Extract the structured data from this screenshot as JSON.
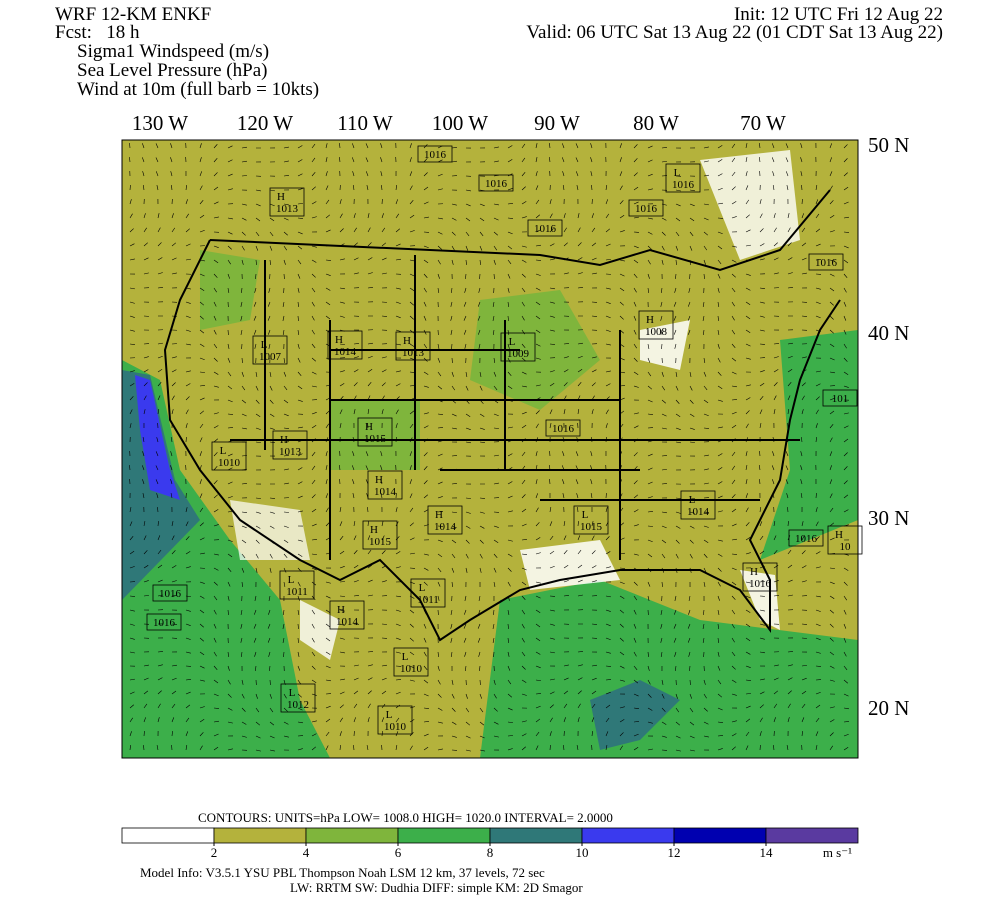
{
  "header": {
    "left": [
      "WRF 12-KM ENKF",
      "Fcst:   18 h",
      "Sigma1 Windspeed (m/s)",
      "Sea Level Pressure (hPa)",
      "Wind at 10m (full barb = 10kts)"
    ],
    "init": "Init: 12 UTC Fri 12 Aug 22",
    "valid": "Valid: 06 UTC Sat 13 Aug 22 (01 CDT Sat 13 Aug 22)"
  },
  "map": {
    "lon_labels": [
      "130 W",
      "120 W",
      "110 W",
      "100 W",
      "90 W",
      "80 W",
      "70 W"
    ],
    "lat_labels": [
      "50 N",
      "40 N",
      "30 N",
      "20 N"
    ],
    "pressure_centers": [
      {
        "value": 1016
      },
      {
        "value": 1016
      },
      {
        "kind": "L",
        "value": 1016
      },
      {
        "value": 1016
      },
      {
        "value": 1016
      },
      {
        "kind": "H",
        "value": 1013
      },
      {
        "value": 1016
      },
      {
        "kind": "H",
        "value": 1008
      },
      {
        "kind": "L",
        "value": 1007
      },
      {
        "kind": "H",
        "value": 1014
      },
      {
        "kind": "H",
        "value": 1013
      },
      {
        "kind": "L",
        "value": 1009
      },
      {
        "kind": "H",
        "value": 1015
      },
      {
        "kind": "L",
        "value": 1010
      },
      {
        "kind": "H",
        "value": 1013
      },
      {
        "value": 1016
      },
      {
        "kind": "H",
        "value": 1014
      },
      {
        "kind": "H",
        "value": 1014
      },
      {
        "kind": "H",
        "value": 1015
      },
      {
        "kind": "L",
        "value": 1015
      },
      {
        "kind": "L",
        "value": 1014
      },
      {
        "value": 1016
      },
      {
        "kind": "H",
        "value": 10
      },
      {
        "value": 101
      },
      {
        "value": 1016
      },
      {
        "value": 1016
      },
      {
        "kind": "L",
        "value": 1011
      },
      {
        "kind": "L",
        "value": 1011
      },
      {
        "kind": "H",
        "value": 1014
      },
      {
        "kind": "L",
        "value": 1010
      },
      {
        "kind": "L",
        "value": 1012
      },
      {
        "kind": "L",
        "value": 1010
      },
      {
        "kind": "H",
        "value": 1016
      }
    ]
  },
  "colorbar": {
    "range": [
      0,
      16
    ],
    "ticks": [
      2,
      4,
      6,
      8,
      10,
      12,
      14
    ],
    "units": "m s⁻¹",
    "colors": [
      "#ffffff",
      "#b4b23c",
      "#7fb53c",
      "#3caf4a",
      "#2f7878",
      "#3a3aee",
      "#0000b0",
      "#5a3aa0"
    ]
  },
  "footer": {
    "contours": "CONTOURS:  UNITS=hPa  LOW=    1008.0      HIGH=   1020.0      INTERVAL=    2.0000",
    "model_info": "Model Info: V3.5.1           YSU PBL  Thompson       Noah LSM  12 km,     37 levels,     72 sec",
    "physics": "LW: RRTM SW: Dudhia  DIFF: simple KM: 2D Smagor"
  }
}
